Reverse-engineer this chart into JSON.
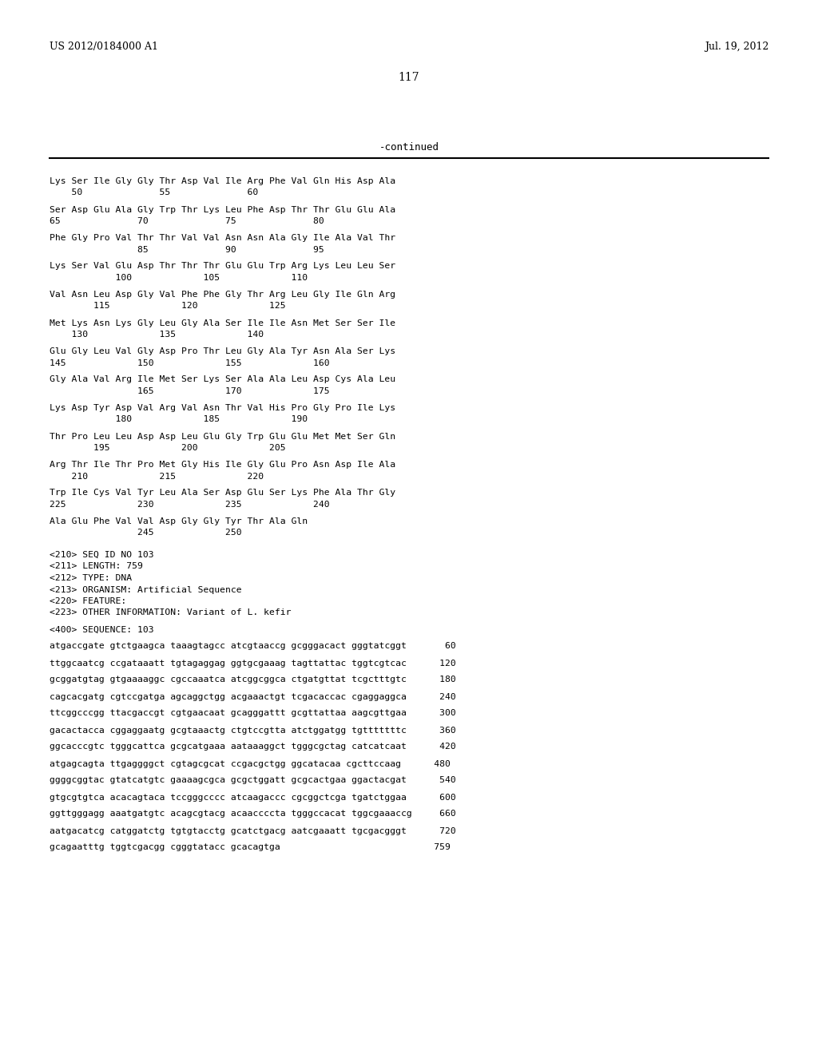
{
  "header_left": "US 2012/0184000 A1",
  "header_right": "Jul. 19, 2012",
  "page_number": "117",
  "continued_label": "-continued",
  "background_color": "#ffffff",
  "text_color": "#000000",
  "content_lines": [
    {
      "text": "Lys Ser Ile Gly Gly Thr Asp Val Ile Arg Phe Val Gln His Asp Ala",
      "type": "seq"
    },
    {
      "text": "    50              55              60",
      "type": "num"
    },
    {
      "text": "",
      "type": "blank"
    },
    {
      "text": "Ser Asp Glu Ala Gly Trp Thr Lys Leu Phe Asp Thr Thr Glu Glu Ala",
      "type": "seq"
    },
    {
      "text": "65              70              75              80",
      "type": "num"
    },
    {
      "text": "",
      "type": "blank"
    },
    {
      "text": "Phe Gly Pro Val Thr Thr Val Val Asn Asn Ala Gly Ile Ala Val Thr",
      "type": "seq"
    },
    {
      "text": "                85              90              95",
      "type": "num"
    },
    {
      "text": "",
      "type": "blank"
    },
    {
      "text": "Lys Ser Val Glu Asp Thr Thr Thr Glu Glu Trp Arg Lys Leu Leu Ser",
      "type": "seq"
    },
    {
      "text": "            100             105             110",
      "type": "num"
    },
    {
      "text": "",
      "type": "blank"
    },
    {
      "text": "Val Asn Leu Asp Gly Val Phe Phe Gly Thr Arg Leu Gly Ile Gln Arg",
      "type": "seq"
    },
    {
      "text": "        115             120             125",
      "type": "num"
    },
    {
      "text": "",
      "type": "blank"
    },
    {
      "text": "Met Lys Asn Lys Gly Leu Gly Ala Ser Ile Ile Asn Met Ser Ser Ile",
      "type": "seq"
    },
    {
      "text": "    130             135             140",
      "type": "num"
    },
    {
      "text": "",
      "type": "blank"
    },
    {
      "text": "Glu Gly Leu Val Gly Asp Pro Thr Leu Gly Ala Tyr Asn Ala Ser Lys",
      "type": "seq"
    },
    {
      "text": "145             150             155             160",
      "type": "num"
    },
    {
      "text": "",
      "type": "blank"
    },
    {
      "text": "Gly Ala Val Arg Ile Met Ser Lys Ser Ala Ala Leu Asp Cys Ala Leu",
      "type": "seq"
    },
    {
      "text": "                165             170             175",
      "type": "num"
    },
    {
      "text": "",
      "type": "blank"
    },
    {
      "text": "Lys Asp Tyr Asp Val Arg Val Asn Thr Val His Pro Gly Pro Ile Lys",
      "type": "seq"
    },
    {
      "text": "            180             185             190",
      "type": "num"
    },
    {
      "text": "",
      "type": "blank"
    },
    {
      "text": "Thr Pro Leu Leu Asp Asp Leu Glu Gly Trp Glu Glu Met Met Ser Gln",
      "type": "seq"
    },
    {
      "text": "        195             200             205",
      "type": "num"
    },
    {
      "text": "",
      "type": "blank"
    },
    {
      "text": "Arg Thr Ile Thr Pro Met Gly His Ile Gly Glu Pro Asn Asp Ile Ala",
      "type": "seq"
    },
    {
      "text": "    210             215             220",
      "type": "num"
    },
    {
      "text": "",
      "type": "blank"
    },
    {
      "text": "Trp Ile Cys Val Tyr Leu Ala Ser Asp Glu Ser Lys Phe Ala Thr Gly",
      "type": "seq"
    },
    {
      "text": "225             230             235             240",
      "type": "num"
    },
    {
      "text": "",
      "type": "blank"
    },
    {
      "text": "Ala Glu Phe Val Val Asp Gly Gly Tyr Thr Ala Gln",
      "type": "seq"
    },
    {
      "text": "                245             250",
      "type": "num"
    },
    {
      "text": "",
      "type": "blank"
    },
    {
      "text": "",
      "type": "blank"
    },
    {
      "text": "<210> SEQ ID NO 103",
      "type": "meta"
    },
    {
      "text": "<211> LENGTH: 759",
      "type": "meta"
    },
    {
      "text": "<212> TYPE: DNA",
      "type": "meta"
    },
    {
      "text": "<213> ORGANISM: Artificial Sequence",
      "type": "meta"
    },
    {
      "text": "<220> FEATURE:",
      "type": "meta"
    },
    {
      "text": "<223> OTHER INFORMATION: Variant of L. kefir",
      "type": "meta"
    },
    {
      "text": "",
      "type": "blank"
    },
    {
      "text": "<400> SEQUENCE: 103",
      "type": "meta"
    },
    {
      "text": "",
      "type": "blank"
    },
    {
      "text": "atgaccgate gtctgaagca taaagtagcc atcgtaaccg gcgggacact gggtatcggt       60",
      "type": "dna"
    },
    {
      "text": "",
      "type": "blank"
    },
    {
      "text": "ttggcaatcg ccgataaatt tgtagaggag ggtgcgaaag tagttattac tggtcgtcac      120",
      "type": "dna"
    },
    {
      "text": "",
      "type": "blank"
    },
    {
      "text": "gcggatgtag gtgaaaaggc cgccaaatca atcggcggca ctgatgttat tcgctttgtc      180",
      "type": "dna"
    },
    {
      "text": "",
      "type": "blank"
    },
    {
      "text": "cagcacgatg cgtccgatga agcaggctgg acgaaactgt tcgacaccac cgaggaggca      240",
      "type": "dna"
    },
    {
      "text": "",
      "type": "blank"
    },
    {
      "text": "ttcggcccgg ttacgaccgt cgtgaacaat gcagggattt gcgttattaa aagcgttgaa      300",
      "type": "dna"
    },
    {
      "text": "",
      "type": "blank"
    },
    {
      "text": "gacactacca cggaggaatg gcgtaaactg ctgtccgtta atctggatgg tgtttttttc      360",
      "type": "dna"
    },
    {
      "text": "",
      "type": "blank"
    },
    {
      "text": "ggcacccgtc tgggcattca gcgcatgaaa aataaaggct tgggcgctag catcatcaat      420",
      "type": "dna"
    },
    {
      "text": "",
      "type": "blank"
    },
    {
      "text": "atgagcagta ttgaggggct cgtagcgcat ccgacgctgg ggcatacaa cgcttccaag      480",
      "type": "dna"
    },
    {
      "text": "",
      "type": "blank"
    },
    {
      "text": "ggggcggtac gtatcatgtc gaaaagcgca gcgctggatt gcgcactgaa ggactacgat      540",
      "type": "dna"
    },
    {
      "text": "",
      "type": "blank"
    },
    {
      "text": "gtgcgtgtca acacagtaca tccgggcccc atcaagaccc cgcggctcga tgatctggaa      600",
      "type": "dna"
    },
    {
      "text": "",
      "type": "blank"
    },
    {
      "text": "ggttgggagg aaatgatgtc acagcgtacg acaaccccta tgggccacat tggcgaaaccg     660",
      "type": "dna"
    },
    {
      "text": "",
      "type": "blank"
    },
    {
      "text": "aatgacatcg catggatctg tgtgtacctg gcatctgacg aatcgaaatt tgcgacgggt      720",
      "type": "dna"
    },
    {
      "text": "",
      "type": "blank"
    },
    {
      "text": "gcagaatttg tggtcgacgg cgggtatacc gcacagtga                            759",
      "type": "dna"
    }
  ]
}
